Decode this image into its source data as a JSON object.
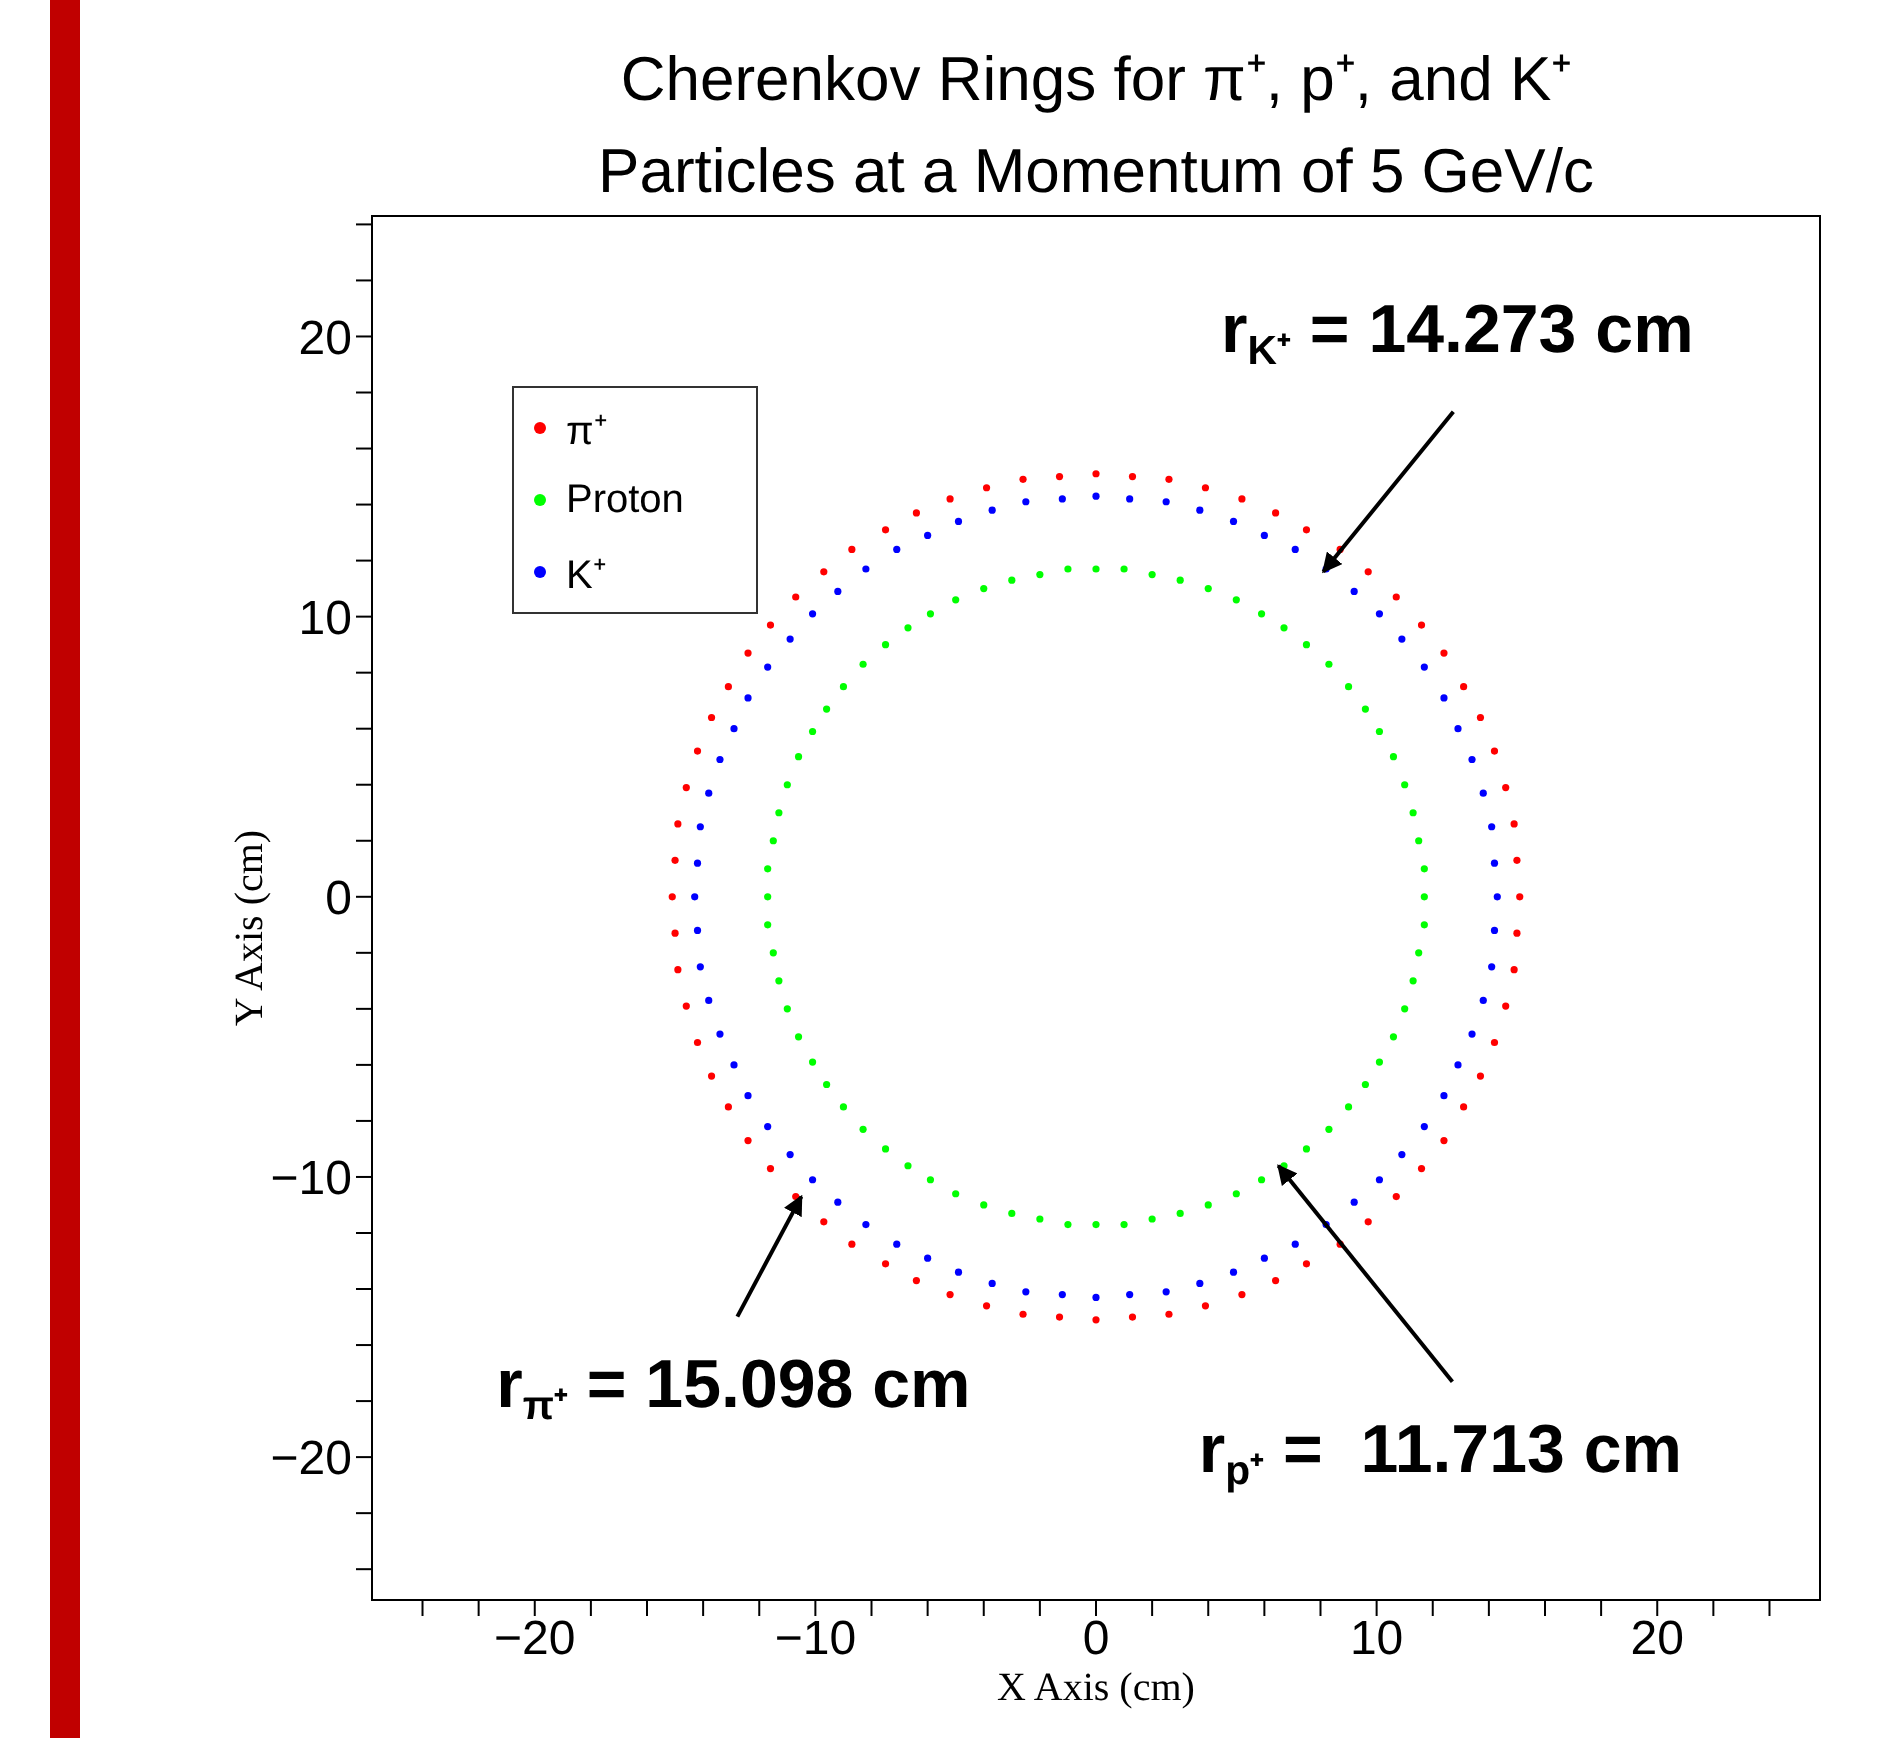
{
  "chart_data": {
    "type": "scatter",
    "title": "Cherenkov Rings for π⁺, p⁺, and K⁺",
    "subtitle": "Particles at a Momentum of 5 GeV/c",
    "xlabel": "X Axis (cm)",
    "ylabel": "Y Axis (cm)",
    "xlim": [
      -25.8,
      25.8
    ],
    "ylim": [
      -25.1,
      24.3
    ],
    "xticks": [
      {
        "value": -24,
        "label": null
      },
      {
        "value": -22,
        "label": null
      },
      {
        "value": -20,
        "label": "−20"
      },
      {
        "value": -18,
        "label": null
      },
      {
        "value": -16,
        "label": null
      },
      {
        "value": -14,
        "label": null
      },
      {
        "value": -12,
        "label": null
      },
      {
        "value": -10,
        "label": "−10"
      },
      {
        "value": -8,
        "label": null
      },
      {
        "value": -6,
        "label": null
      },
      {
        "value": -4,
        "label": null
      },
      {
        "value": -2,
        "label": null
      },
      0,
      {
        "value": 2,
        "label": null
      },
      {
        "value": 4,
        "label": null
      },
      {
        "value": 6,
        "label": null
      },
      {
        "value": 8,
        "label": null
      },
      10,
      {
        "value": 12,
        "label": null
      },
      {
        "value": 14,
        "label": null
      },
      {
        "value": 16,
        "label": null
      },
      {
        "value": 18,
        "label": null
      },
      20,
      {
        "value": 22,
        "label": null
      },
      {
        "value": 24,
        "label": null
      }
    ],
    "yticks": [
      {
        "value": -24,
        "label": null
      },
      {
        "value": -22,
        "label": null
      },
      {
        "value": -20,
        "label": "−20"
      },
      {
        "value": -18,
        "label": null
      },
      {
        "value": -16,
        "label": null
      },
      {
        "value": -14,
        "label": null
      },
      {
        "value": -12,
        "label": null
      },
      {
        "value": -10,
        "label": "−10"
      },
      {
        "value": -8,
        "label": null
      },
      {
        "value": -6,
        "label": null
      },
      {
        "value": -4,
        "label": null
      },
      {
        "value": -2,
        "label": null
      },
      0,
      {
        "value": 2,
        "label": null
      },
      {
        "value": 4,
        "label": null
      },
      {
        "value": 6,
        "label": null
      },
      {
        "value": 8,
        "label": null
      },
      10,
      {
        "value": 12,
        "label": null
      },
      {
        "value": 14,
        "label": null
      },
      {
        "value": 16,
        "label": null
      },
      {
        "value": 18,
        "label": null
      },
      20,
      {
        "value": 22,
        "label": null
      },
      {
        "value": 24,
        "label": null
      }
    ],
    "legend": "top left",
    "marker": "circle",
    "grid": false,
    "series": [
      {
        "name": "π⁺",
        "color": "#ff0000",
        "x": [
          15.1,
          15,
          14.9,
          14.6,
          14.2,
          13.7,
          13.1,
          12.4,
          11.6,
          10.7,
          9.7,
          8.7,
          7.5,
          6.4,
          5.2,
          3.9,
          2.6,
          1.3,
          0,
          -1.3,
          -2.6,
          -3.9,
          -5.2,
          -6.4,
          -7.5,
          -8.7,
          -9.7,
          -10.7,
          -11.6,
          -12.4,
          -13.1,
          -13.7,
          -14.2,
          -14.6,
          -14.9,
          -15,
          -15.1,
          -15,
          -14.9,
          -14.6,
          -14.2,
          -13.7,
          -13.1,
          -12.4,
          -11.6,
          -10.7,
          -9.7,
          -8.7,
          -7.5,
          -6.4,
          -5.2,
          -3.9,
          -2.6,
          -1.3,
          0,
          1.3,
          2.6,
          3.9,
          5.2,
          6.4,
          7.5,
          8.7,
          9.7,
          10.7,
          11.6,
          12.4,
          13.1,
          13.7,
          14.2,
          14.6,
          14.9,
          15
        ],
        "values": [
          0,
          1.3,
          2.6,
          3.9,
          5.2,
          6.4,
          7.5,
          8.7,
          9.7,
          10.7,
          11.6,
          12.4,
          13.1,
          13.7,
          14.2,
          14.6,
          14.9,
          15,
          15.1,
          15,
          14.9,
          14.6,
          14.2,
          13.7,
          13.1,
          12.4,
          11.6,
          10.7,
          9.7,
          8.7,
          7.5,
          6.4,
          5.2,
          3.9,
          2.6,
          1.3,
          0,
          -1.3,
          -2.6,
          -3.9,
          -5.2,
          -6.4,
          -7.5,
          -8.7,
          -9.7,
          -10.7,
          -11.6,
          -12.4,
          -13.1,
          -13.7,
          -14.2,
          -14.6,
          -14.9,
          -15,
          -15.1,
          -15,
          -14.9,
          -14.6,
          -14.2,
          -13.7,
          -13.1,
          -12.4,
          -11.6,
          -10.7,
          -9.7,
          -8.7,
          -7.5,
          -6.4,
          -5.2,
          -3.9,
          -2.6,
          -1.3
        ]
      },
      {
        "name": "Proton",
        "color": "#00ff00",
        "x": [
          11.7,
          11.7,
          11.5,
          11.3,
          11,
          10.6,
          10.1,
          9.6,
          9,
          8.3,
          7.5,
          6.7,
          5.9,
          5,
          4,
          3,
          2,
          1,
          0,
          -1,
          -2,
          -3,
          -4,
          -5,
          -5.9,
          -6.7,
          -7.5,
          -8.3,
          -9,
          -9.6,
          -10.1,
          -10.6,
          -11,
          -11.3,
          -11.5,
          -11.7,
          -11.7,
          -11.7,
          -11.5,
          -11.3,
          -11,
          -10.6,
          -10.1,
          -9.6,
          -9,
          -8.3,
          -7.5,
          -6.7,
          -5.9,
          -5,
          -4,
          -3,
          -2,
          -1,
          0,
          1,
          2,
          3,
          4,
          5,
          5.9,
          6.7,
          7.5,
          8.3,
          9,
          9.6,
          10.1,
          10.6,
          11,
          11.3,
          11.5,
          11.7
        ],
        "values": [
          0,
          1,
          2,
          3,
          4,
          5,
          5.9,
          6.7,
          7.5,
          8.3,
          9,
          9.6,
          10.1,
          10.6,
          11,
          11.3,
          11.5,
          11.7,
          11.7,
          11.7,
          11.5,
          11.3,
          11,
          10.6,
          10.1,
          9.6,
          9,
          8.3,
          7.5,
          6.7,
          5.9,
          5,
          4,
          3,
          2,
          1,
          0,
          -1,
          -2,
          -3,
          -4,
          -5,
          -5.9,
          -6.7,
          -7.5,
          -8.3,
          -9,
          -9.6,
          -10.1,
          -10.6,
          -11,
          -11.3,
          -11.5,
          -11.7,
          -11.7,
          -11.7,
          -11.5,
          -11.3,
          -11,
          -10.6,
          -10.1,
          -9.6,
          -9,
          -8.3,
          -7.5,
          -6.7,
          -5.9,
          -5,
          -4,
          -3,
          -2,
          -1
        ]
      },
      {
        "name": "K⁺",
        "color": "#0000ff",
        "x": [
          14.3,
          14.2,
          14.1,
          13.8,
          13.4,
          12.9,
          12.4,
          11.7,
          10.9,
          10.1,
          9.2,
          8.2,
          7.1,
          6,
          4.9,
          3.7,
          2.5,
          1.2,
          0,
          -1.2,
          -2.5,
          -3.7,
          -4.9,
          -6,
          -7.1,
          -8.2,
          -9.2,
          -10.1,
          -10.9,
          -11.7,
          -12.4,
          -12.9,
          -13.4,
          -13.8,
          -14.1,
          -14.2,
          -14.3,
          -14.2,
          -14.1,
          -13.8,
          -13.4,
          -12.9,
          -12.4,
          -11.7,
          -10.9,
          -10.1,
          -9.2,
          -8.2,
          -7.1,
          -6,
          -4.9,
          -3.7,
          -2.5,
          -1.2,
          0,
          1.2,
          2.5,
          3.7,
          4.9,
          6,
          7.1,
          8.2,
          9.2,
          10.1,
          10.9,
          11.7,
          12.4,
          12.9,
          13.4,
          13.8,
          14.1,
          14.2
        ],
        "values": [
          0,
          1.2,
          2.5,
          3.7,
          4.9,
          6,
          7.1,
          8.2,
          9.2,
          10.1,
          10.9,
          11.7,
          12.4,
          12.9,
          13.4,
          13.8,
          14.1,
          14.2,
          14.3,
          14.2,
          14.1,
          13.8,
          13.4,
          12.9,
          12.4,
          11.7,
          10.9,
          10.1,
          9.2,
          8.2,
          7.1,
          6,
          4.9,
          3.7,
          2.5,
          1.2,
          0,
          -1.2,
          -2.5,
          -3.7,
          -4.9,
          -6,
          -7.1,
          -8.2,
          -9.2,
          -10.1,
          -10.9,
          -11.7,
          -12.4,
          -12.9,
          -13.4,
          -13.8,
          -14.1,
          -14.2,
          -14.3,
          -14.2,
          -14.1,
          -13.8,
          -13.4,
          -12.9,
          -12.4,
          -11.7,
          -10.9,
          -10.1,
          -9.2,
          -8.2,
          -7.1,
          -6,
          -4.9,
          -3.7,
          -2.5,
          -1.2
        ]
      }
    ],
    "annotations": [
      {
        "text": "r$_{K⁺}$ = 14.273 cm",
        "x": 8.1,
        "y": 11.6
      },
      {
        "text": "r$_{π⁺}$ = 15.098 cm",
        "x": -10.5,
        "y": -10.7
      },
      {
        "text": "r$_{p⁺}$ =  11.713 cm",
        "x": 6.5,
        "y": -9.6
      }
    ]
  }
}
